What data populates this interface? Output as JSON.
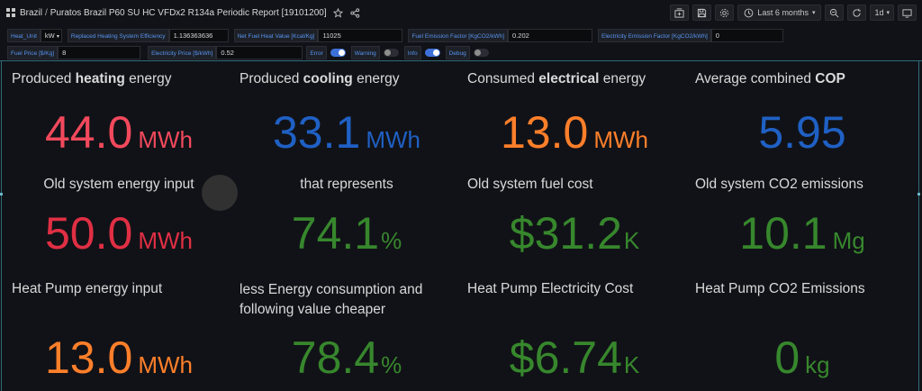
{
  "topbar": {
    "crumb_folder": "Brazil",
    "separator": "/",
    "crumb_dashboard": "Puratos Brazil P60 SU HC VFDx2 R134a Periodic Report [19101200]",
    "time_range": "Last 6 months",
    "refresh_interval": "1d"
  },
  "variables": {
    "heat_unit_label": "Heat_Unit",
    "heat_unit_value": "kW",
    "replaced_eff_label": "Replaced Heating System Efficiency",
    "replaced_eff_value": "1.136363636",
    "net_fuel_label": "Net Fuel Heat Value [Kcal/Kg]",
    "net_fuel_value": "11025",
    "fuel_emission_label": "Fuel Emission Factor [KgCO2/kWh]",
    "fuel_emission_value": "0.202",
    "elec_emission_label": "Electricity Emission Factor [KgCO2/kWh]",
    "elec_emission_value": "0",
    "fuel_price_label": "Fuel Price [$/Kg]",
    "fuel_price_value": "8",
    "elec_price_label": "Electricity Price [$/kWh]",
    "elec_price_value": "0.52",
    "error_label": "Error",
    "error_on": true,
    "warning_label": "Warning",
    "warning_on": false,
    "info_label": "Info",
    "info_on": true,
    "debug_label": "Debug",
    "debug_on": false
  },
  "panels": {
    "p1": {
      "title_pre": "Produced ",
      "title_bold": "heating",
      "title_post": " energy",
      "value": "44.0",
      "unit": "MWh"
    },
    "p2": {
      "title_pre": "Produced ",
      "title_bold": "cooling",
      "title_post": " energy",
      "value": "33.1",
      "unit": "MWh"
    },
    "p3": {
      "title_pre": "Consumed ",
      "title_bold": "electrical",
      "title_post": " energy",
      "value": "13.0",
      "unit": "MWh"
    },
    "p4": {
      "title_pre": "Average combined ",
      "title_bold": "COP",
      "value": "5.95"
    },
    "p5": {
      "title": "Old system energy input",
      "value": "50.0",
      "unit": "MWh"
    },
    "p6": {
      "title": "that represents",
      "value": "74.1",
      "unit": "%"
    },
    "p7": {
      "title": "Old system fuel cost",
      "value": "$31.2",
      "unit": "K"
    },
    "p8": {
      "title": "Old system CO2 emissions",
      "value": "10.1",
      "unit": "Mg"
    },
    "p9": {
      "title": "Heat Pump energy input",
      "value": "13.0",
      "unit": "MWh"
    },
    "p10": {
      "title": "less Energy consumption and following value cheaper",
      "value": "78.4",
      "unit": "%"
    },
    "p11": {
      "title": "Heat Pump Electricity Cost",
      "value": "$6.74",
      "unit": "K"
    },
    "p12": {
      "title": "Heat Pump CO2 Emissions",
      "value": "0",
      "unit": "kg"
    }
  },
  "colors": {
    "background": "#111217",
    "red": "#f2495c",
    "blue": "#1f60c4",
    "orange": "#ff7f2a",
    "green": "#37872d"
  },
  "icons": [
    "apps-icon",
    "star-icon",
    "share-icon",
    "add-panel-icon",
    "save-icon",
    "settings-icon",
    "clock-icon",
    "zoom-out-icon",
    "refresh-icon",
    "tv-mode-icon"
  ]
}
